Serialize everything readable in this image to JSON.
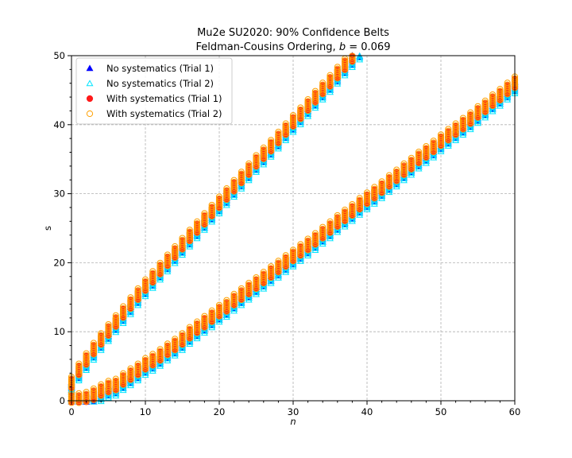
{
  "chart_data": {
    "type": "scatter",
    "title_line1": "Mu2e SU2020: 90% Confidence Belts",
    "title_line2_prefix": "Feldman-Cousins Ordering, ",
    "title_line2_var": "b",
    "title_line2_suffix": " = 0.069",
    "xlabel": "n",
    "ylabel": "s",
    "xlim": [
      0,
      60
    ],
    "ylim": [
      0,
      50
    ],
    "x_ticks": [
      0,
      10,
      20,
      30,
      40,
      50,
      60
    ],
    "y_ticks": [
      0,
      10,
      20,
      30,
      40,
      50
    ],
    "x_tick_labels": [
      "0",
      "10",
      "20",
      "30",
      "40",
      "50",
      "60"
    ],
    "y_tick_labels": [
      "0",
      "10",
      "20",
      "30",
      "40",
      "50"
    ],
    "grid": true,
    "legend_position": "top-left",
    "x": [
      0,
      1,
      2,
      3,
      4,
      5,
      6,
      7,
      8,
      9,
      10,
      11,
      12,
      13,
      14,
      15,
      16,
      17,
      18,
      19,
      20,
      21,
      22,
      23,
      24,
      25,
      26,
      27,
      28,
      29,
      30,
      31,
      32,
      33,
      34,
      35,
      36,
      37,
      38,
      39,
      40,
      41,
      42,
      43,
      44,
      45,
      46,
      47,
      48,
      49,
      50,
      51,
      52,
      53,
      54,
      55,
      56,
      57,
      58,
      59,
      60
    ],
    "upper_limit": [
      2.4,
      4.3,
      5.8,
      7.3,
      8.7,
      10.0,
      11.3,
      12.6,
      13.9,
      15.2,
      16.5,
      17.7,
      18.9,
      20.1,
      21.3,
      22.5,
      23.7,
      24.9,
      26.1,
      27.3,
      28.5,
      29.7,
      30.9,
      32.1,
      33.3,
      34.5,
      35.6,
      36.7,
      37.9,
      39.1,
      40.3,
      41.4,
      42.6,
      43.8,
      45.0,
      46.1,
      47.3,
      48.5,
      49.7,
      50.8,
      null,
      null,
      null,
      null,
      null,
      null,
      null,
      null,
      null,
      null,
      null,
      null,
      null,
      null,
      null,
      null,
      null,
      null,
      null,
      null,
      null
    ],
    "lower_limit": [
      0.0,
      0.0,
      0.2,
      0.7,
      1.3,
      1.8,
      2.1,
      2.9,
      3.6,
      4.3,
      5.1,
      5.7,
      6.4,
      7.2,
      7.9,
      8.7,
      9.6,
      10.4,
      11.2,
      12.0,
      12.8,
      13.5,
      14.4,
      15.2,
      16.0,
      16.8,
      17.6,
      18.4,
      19.2,
      20.0,
      20.8,
      21.6,
      22.4,
      23.2,
      24.1,
      24.9,
      25.8,
      26.6,
      27.4,
      28.3,
      29.1,
      29.9,
      30.7,
      31.6,
      32.4,
      33.3,
      34.1,
      35.0,
      35.8,
      36.6,
      37.5,
      38.3,
      39.1,
      39.9,
      40.7,
      41.6,
      42.4,
      43.3,
      44.1,
      45.0,
      45.9
    ],
    "series": [
      {
        "name": "No systematics (Trial 1)",
        "marker": "triangle-filled",
        "color": "#0000ff",
        "offset": -0.4,
        "span": 1.4
      },
      {
        "name": "No systematics (Trial 2)",
        "marker": "triangle-open",
        "color": "#00e5ff",
        "offset": -0.6,
        "span": 1.6
      },
      {
        "name": "With systematics (Trial 1)",
        "marker": "circle-filled",
        "color": "#ff1a1a",
        "offset": 0.05,
        "span": 1.2
      },
      {
        "name": "With systematics (Trial 2)",
        "marker": "circle-open",
        "color": "#ffa000",
        "offset": 0.25,
        "span": 1.6
      }
    ]
  }
}
